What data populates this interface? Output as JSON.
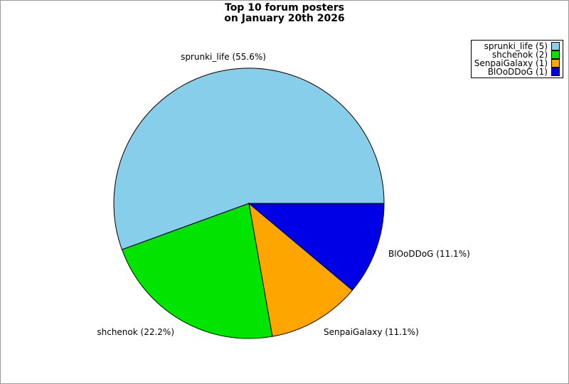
{
  "figure": {
    "background": "#ffffff",
    "border_color": "#999999"
  },
  "title": {
    "line1": "Top 10 forum posters",
    "line2": "on January 20th 2026"
  },
  "legend": {
    "position": "top-right",
    "items": [
      {
        "label": "sprunki_life (5)",
        "color": "#87CEEB"
      },
      {
        "label": "shchenok (2)",
        "color": "#00E400"
      },
      {
        "label": "SenpaiGalaxy (1)",
        "color": "#FFA500"
      },
      {
        "label": "BlOoDDoG (1)",
        "color": "#0000E6"
      }
    ]
  },
  "chart_data": {
    "type": "pie",
    "title": "Top 10 forum posters\non January 20th 2026",
    "categories": [
      "sprunki_life",
      "shchenok",
      "SenpaiGalaxy",
      "BlOoDDoG"
    ],
    "values": [
      5,
      2,
      1,
      1
    ],
    "percentages": [
      55.6,
      22.2,
      11.1,
      11.1
    ],
    "slice_labels": [
      "sprunki_life (55.6%)",
      "shchenok (22.2%)",
      "SenpaiGalaxy (11.1%)",
      "BlOoDDoG (11.1%)"
    ],
    "colors": [
      "#87CEEB",
      "#00E400",
      "#FFA500",
      "#0000E6"
    ],
    "stroke_color": "#000000",
    "start_angle_deg": 0,
    "direction": "counterclockwise",
    "legend_position": "top-right",
    "legend_entries": [
      "sprunki_life (5)",
      "shchenok (2)",
      "SenpaiGalaxy (1)",
      "BlOoDDoG (1)"
    ]
  }
}
